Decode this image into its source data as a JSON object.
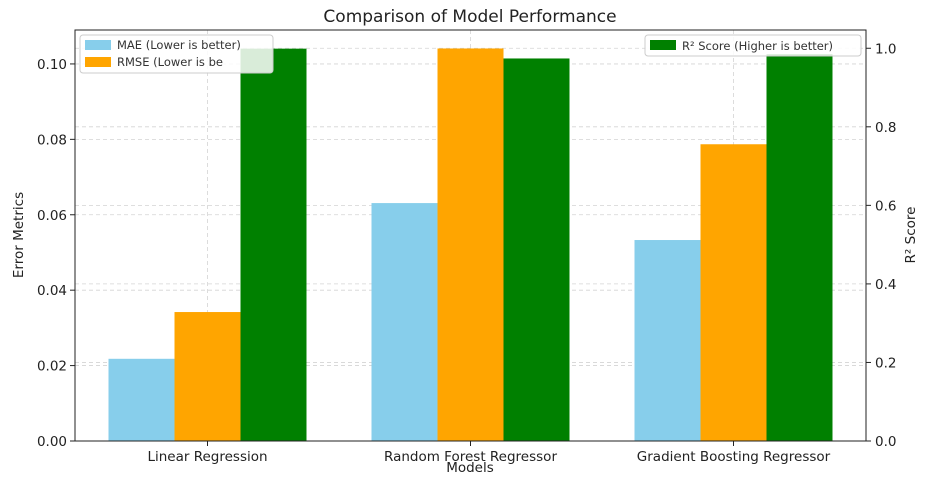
{
  "chart_data": {
    "type": "bar",
    "title": "Comparison of Model Performance",
    "xlabel": "Models",
    "ylabel": "Error Metrics",
    "y2label": "R² Score",
    "categories": [
      "Linear Regression",
      "Random Forest Regressor",
      "Gradient Boosting Regressor"
    ],
    "ylim": [
      0,
      0.109
    ],
    "y2lim": [
      0,
      1.0465
    ],
    "yticks": [
      "0.00",
      "0.02",
      "0.04",
      "0.06",
      "0.08",
      "0.10"
    ],
    "y2ticks": [
      "0.0",
      "0.2",
      "0.4",
      "0.6",
      "0.8",
      "1.0"
    ],
    "grid": true,
    "series": [
      {
        "name": "MAE (Lower is better)",
        "axis": "left",
        "color": "#87ceeb",
        "values": [
          0.0218,
          0.0631,
          0.0533
        ]
      },
      {
        "name": "RMSE (Lower is better)",
        "axis": "left",
        "color": "#ffa500",
        "values": [
          0.0342,
          0.1041,
          0.0787
        ]
      },
      {
        "name": "R² Score (Higher is better)",
        "axis": "right",
        "color": "#008000",
        "values": [
          0.999,
          0.974,
          0.985
        ]
      }
    ],
    "legend": {
      "left": {
        "placement": "top-left",
        "labels": [
          "MAE (Lower is better)",
          "RMSE (Lower is be"
        ]
      },
      "right": {
        "placement": "top-right",
        "labels": [
          "R² Score (Higher is better)"
        ]
      }
    }
  }
}
